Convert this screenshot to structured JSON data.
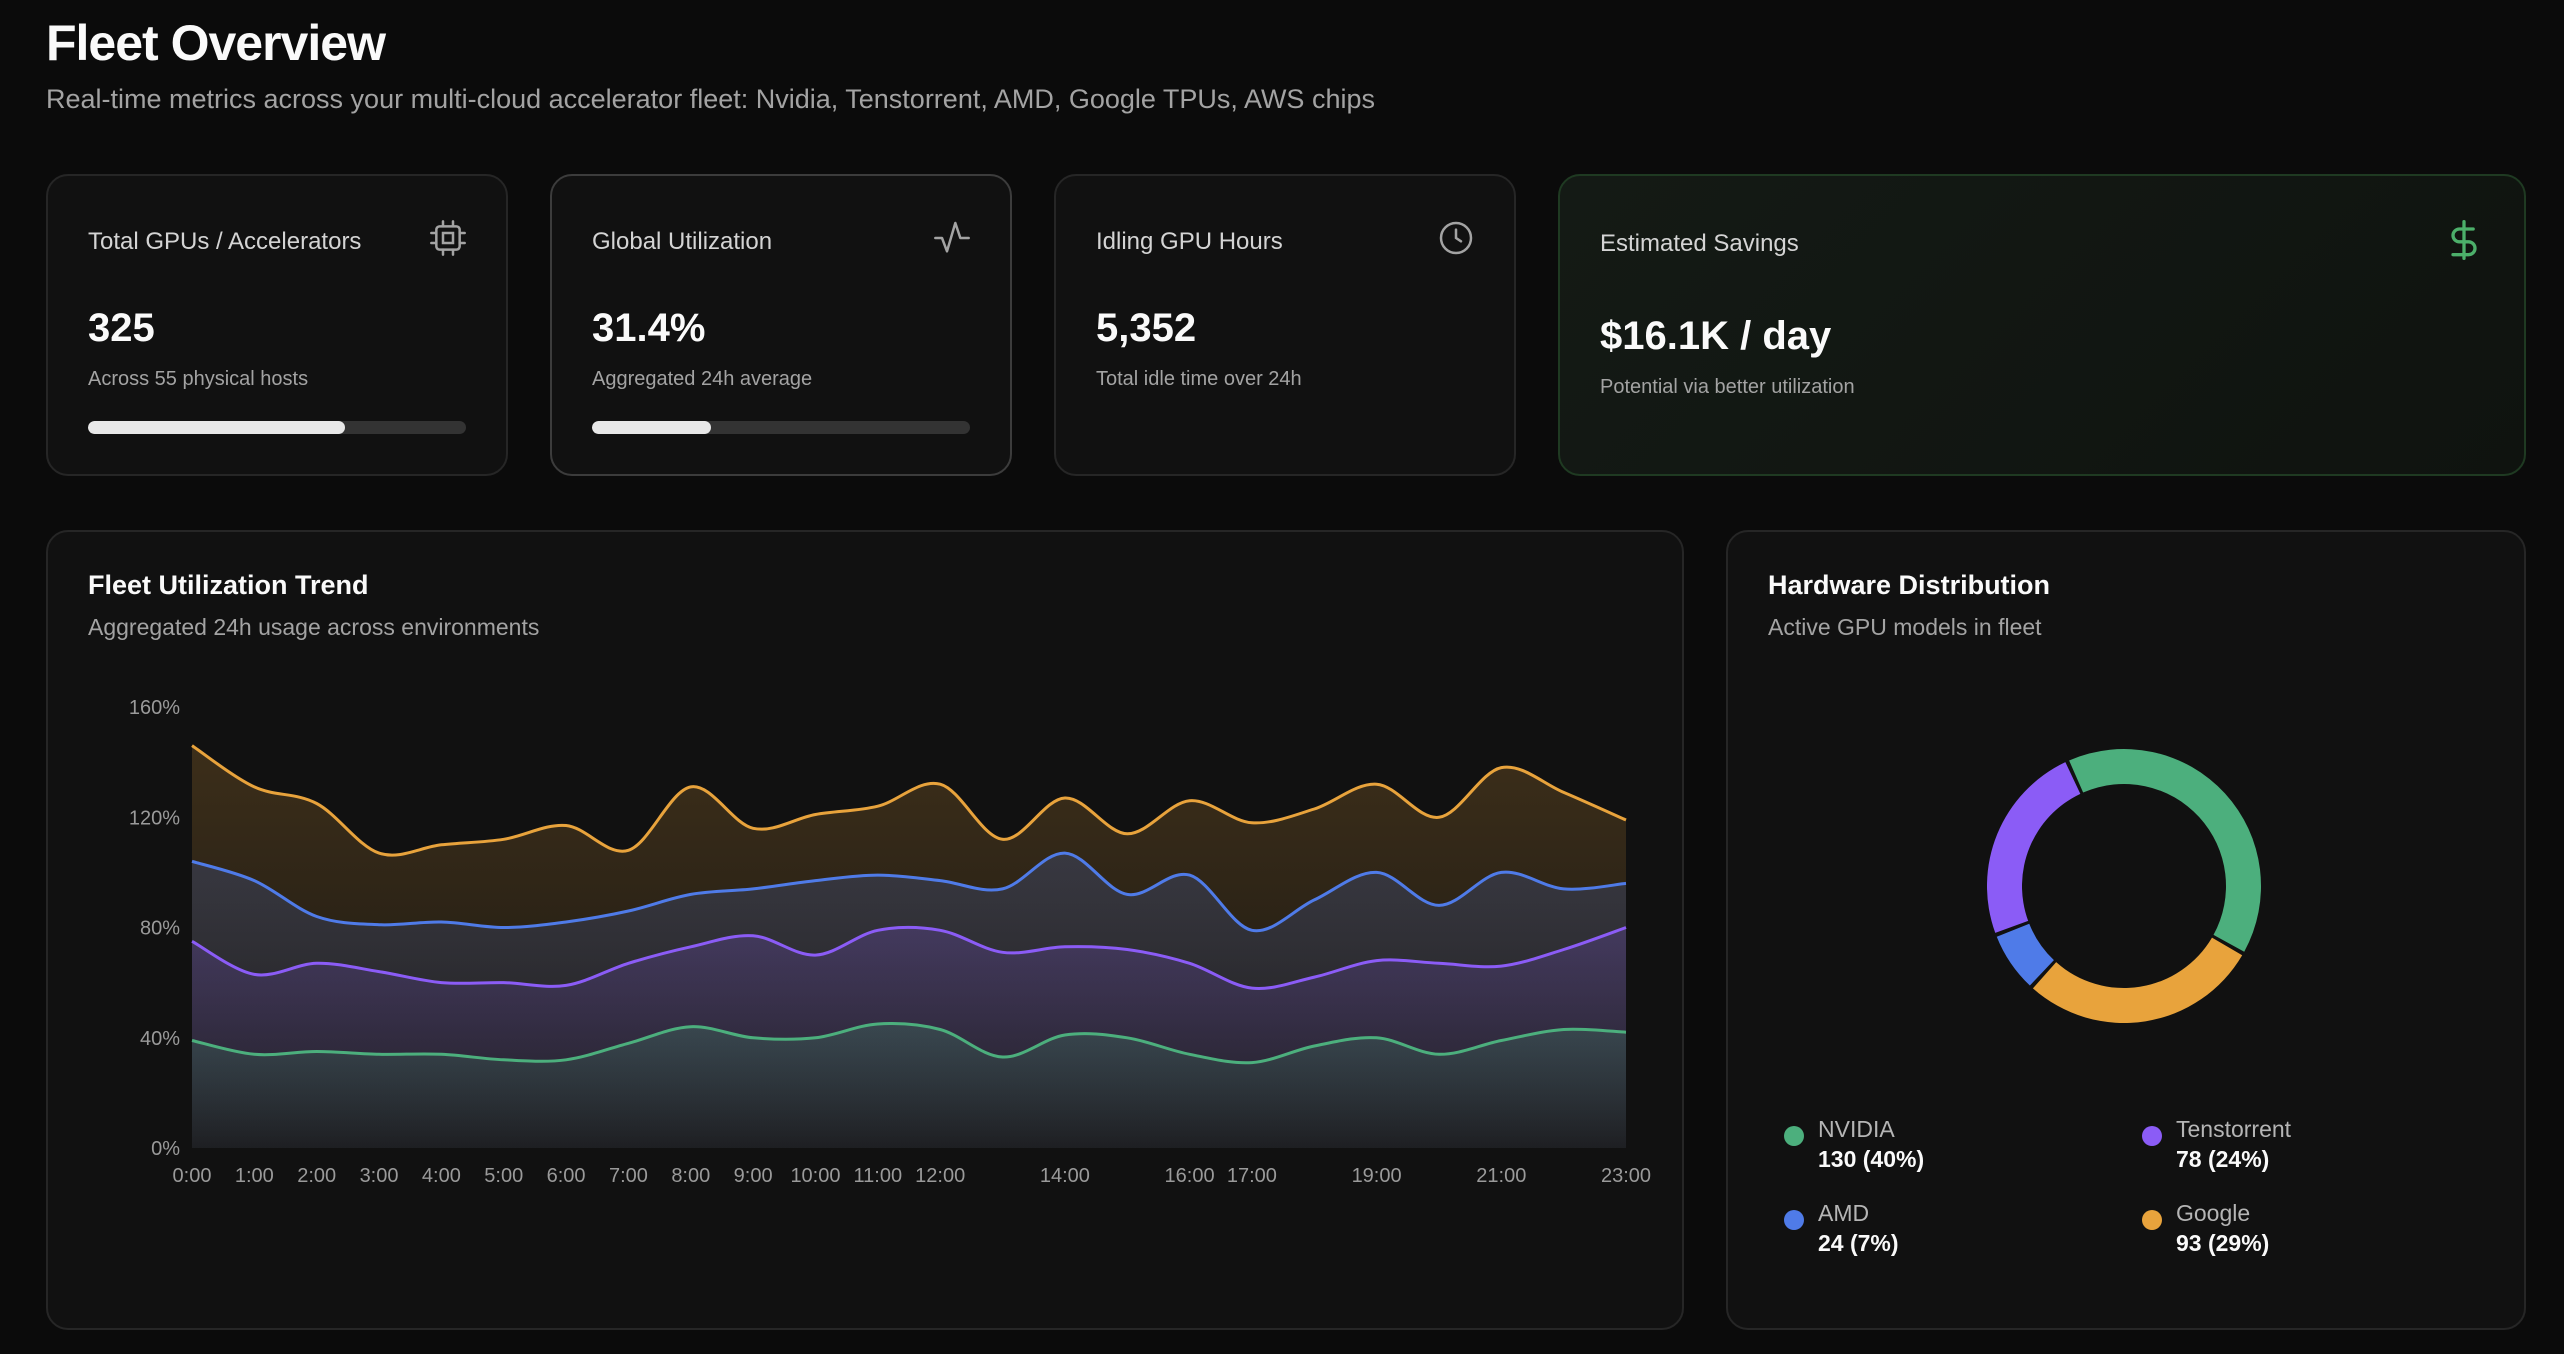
{
  "header": {
    "title": "Fleet Overview",
    "subtitle": "Real-time metrics across your multi-cloud accelerator fleet: Nvidia, Tenstorrent, AMD, Google TPUs, AWS chips"
  },
  "kpis": [
    {
      "label": "Total GPUs / Accelerators",
      "value": "325",
      "sub": "Across 55 physical hosts",
      "icon": "chip-icon",
      "progress": 0.68
    },
    {
      "label": "Global Utilization",
      "value": "31.4%",
      "sub": "Aggregated 24h average",
      "icon": "activity-icon",
      "progress": 0.314
    },
    {
      "label": "Idling GPU Hours",
      "value": "5,352",
      "sub": "Total idle time over 24h",
      "icon": "clock-icon"
    },
    {
      "label": "Estimated Savings",
      "value": "$16.1K / day",
      "sub": "Potential via better utilization",
      "icon": "dollar-icon",
      "accent": "#4caf6a"
    }
  ],
  "trend_panel": {
    "title": "Fleet Utilization Trend",
    "subtitle": "Aggregated 24h usage across environments"
  },
  "distribution_panel": {
    "title": "Hardware Distribution",
    "subtitle": "Active GPU models in fleet",
    "legend": [
      {
        "name": "NVIDIA",
        "value": "130 (40%)",
        "color": "#4caf7d"
      },
      {
        "name": "Tenstorrent",
        "value": "78 (24%)",
        "color": "#8b5cf6"
      },
      {
        "name": "AMD",
        "value": "24 (7%)",
        "color": "#4f7be8"
      },
      {
        "name": "Google",
        "value": "93 (29%)",
        "color": "#e8a33c"
      }
    ]
  },
  "chart_data": [
    {
      "type": "area",
      "title": "Fleet Utilization Trend",
      "x": [
        0,
        1,
        2,
        3,
        4,
        5,
        6,
        7,
        8,
        9,
        10,
        11,
        12,
        13,
        14,
        15,
        16,
        17,
        18,
        19,
        20,
        21,
        22,
        23
      ],
      "x_tick_labels": [
        "0:00",
        "1:00",
        "2:00",
        "3:00",
        "4:00",
        "5:00",
        "6:00",
        "7:00",
        "8:00",
        "9:00",
        "10:00",
        "11:00",
        "12:00",
        "14:00",
        "16:00",
        "17:00",
        "19:00",
        "21:00",
        "23:00"
      ],
      "x_tick_hours": [
        0,
        1,
        2,
        3,
        4,
        5,
        6,
        7,
        8,
        9,
        10,
        11,
        12,
        14,
        16,
        17,
        19,
        21,
        23
      ],
      "y_ticks": [
        "0%",
        "40%",
        "80%",
        "120%",
        "160%"
      ],
      "ylim": [
        0,
        160
      ],
      "grid": false,
      "stacked": true,
      "series": [
        {
          "color": "#4caf7d",
          "values": [
            39,
            34,
            35,
            34,
            34,
            32,
            32,
            38,
            44,
            40,
            40,
            45,
            43,
            33,
            41,
            40,
            34,
            31,
            37,
            40,
            34,
            39,
            43,
            42
          ]
        },
        {
          "color": "#8b5cf6",
          "values": [
            75,
            63,
            67,
            64,
            60,
            60,
            59,
            67,
            73,
            77,
            70,
            79,
            79,
            71,
            73,
            72,
            67,
            58,
            62,
            68,
            67,
            66,
            72,
            80
          ]
        },
        {
          "color": "#4f7be8",
          "values": [
            104,
            97,
            84,
            81,
            82,
            80,
            82,
            86,
            92,
            94,
            97,
            99,
            97,
            94,
            107,
            92,
            99,
            79,
            90,
            100,
            88,
            100,
            94,
            96
          ]
        },
        {
          "color": "#e8a33c",
          "values": [
            146,
            131,
            125,
            107,
            110,
            112,
            117,
            108,
            131,
            116,
            121,
            124,
            132,
            112,
            127,
            114,
            126,
            118,
            123,
            132,
            120,
            138,
            129,
            119
          ]
        }
      ]
    },
    {
      "type": "pie",
      "title": "Hardware Distribution",
      "categories": [
        "NVIDIA",
        "Google",
        "AMD",
        "Tenstorrent"
      ],
      "values": [
        130,
        93,
        24,
        78
      ],
      "colors": [
        "#4caf7d",
        "#e8a33c",
        "#4f7be8",
        "#8b5cf6"
      ],
      "donut": true
    }
  ]
}
